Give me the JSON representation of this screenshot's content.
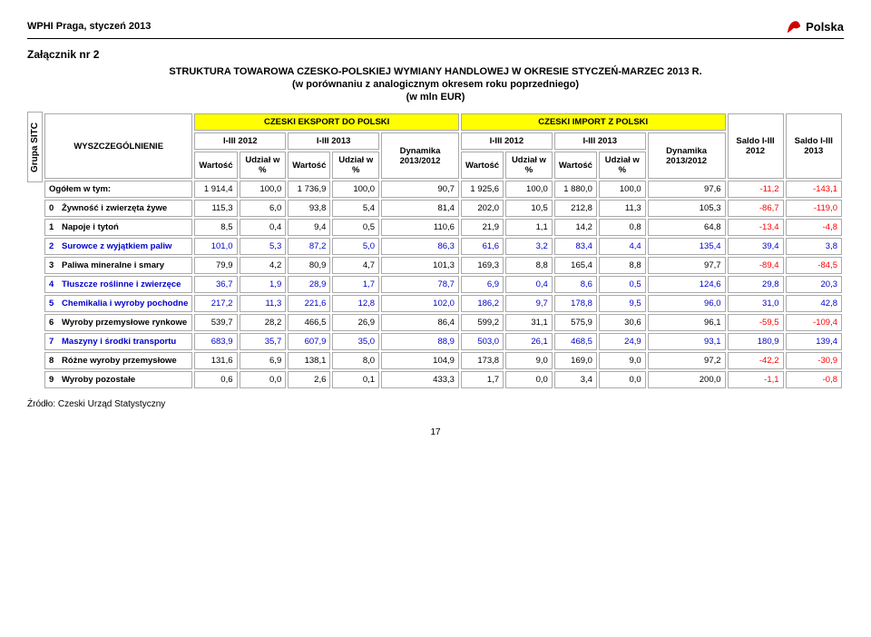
{
  "header": {
    "left": "WPHI Praga, styczeń 2013",
    "logo_text": "Polska"
  },
  "attachment": "Załącznik nr 2",
  "title": "STRUKTURA TOWAROWA CZESKO-POLSKIEJ WYMIANY HANDLOWEJ W OKRESIE STYCZEŃ-MARZEC 2013 R.",
  "subtitle": "(w porównaniu z analogicznym okresem roku poprzedniego)",
  "unit": "(w mln EUR)",
  "side_label": "Grupa SITC",
  "columns": {
    "wyszczegolnienie": "WYSZCZEGÓLNIENIE",
    "eksport": "CZESKI EKSPORT DO POLSKI",
    "import": "CZESKI IMPORT Z POLSKI",
    "period_2012": "I-III 2012",
    "period_2013": "I-III 2013",
    "wartosc": "Wartość",
    "udzial": "Udział w %",
    "dynamika": "Dynamika 2013/2012",
    "saldo_2012": "Saldo I-III 2012",
    "saldo_2013": "Saldo I-III 2013"
  },
  "rows": [
    {
      "idx": "",
      "label": "Ogółem w tym:",
      "ev12": "1 914,4",
      "eu12": "100,0",
      "ev13": "1 736,9",
      "eu13": "100,0",
      "ed": "90,7",
      "iv12": "1 925,6",
      "iu12": "100,0",
      "iv13": "1 880,0",
      "iu13": "100,0",
      "id": "97,6",
      "s12": "-11,2",
      "s13": "-143,1"
    },
    {
      "idx": "0",
      "label": "Żywność i zwierzęta żywe",
      "ev12": "115,3",
      "eu12": "6,0",
      "ev13": "93,8",
      "eu13": "5,4",
      "ed": "81,4",
      "iv12": "202,0",
      "iu12": "10,5",
      "iv13": "212,8",
      "iu13": "11,3",
      "id": "105,3",
      "s12": "-86,7",
      "s13": "-119,0"
    },
    {
      "idx": "1",
      "label": "Napoje i tytoń",
      "ev12": "8,5",
      "eu12": "0,4",
      "ev13": "9,4",
      "eu13": "0,5",
      "ed": "110,6",
      "iv12": "21,9",
      "iu12": "1,1",
      "iv13": "14,2",
      "iu13": "0,8",
      "id": "64,8",
      "s12": "-13,4",
      "s13": "-4,8"
    },
    {
      "idx": "2",
      "label": "Surowce z wyjątkiem paliw",
      "blue": true,
      "ev12": "101,0",
      "eu12": "5,3",
      "ev13": "87,2",
      "eu13": "5,0",
      "ed": "86,3",
      "iv12": "61,6",
      "iu12": "3,2",
      "iv13": "83,4",
      "iu13": "4,4",
      "id": "135,4",
      "s12": "39,4",
      "s13": "3,8"
    },
    {
      "idx": "3",
      "label": "Paliwa mineralne i smary",
      "ev12": "79,9",
      "eu12": "4,2",
      "ev13": "80,9",
      "eu13": "4,7",
      "ed": "101,3",
      "iv12": "169,3",
      "iu12": "8,8",
      "iv13": "165,4",
      "iu13": "8,8",
      "id": "97,7",
      "s12": "-89,4",
      "s13": "-84,5"
    },
    {
      "idx": "4",
      "label": "Tłuszcze roślinne i zwierzęce",
      "blue": true,
      "ev12": "36,7",
      "eu12": "1,9",
      "ev13": "28,9",
      "eu13": "1,7",
      "ed": "78,7",
      "iv12": "6,9",
      "iu12": "0,4",
      "iv13": "8,6",
      "iu13": "0,5",
      "id": "124,6",
      "s12": "29,8",
      "s13": "20,3"
    },
    {
      "idx": "5",
      "label": "Chemikalia i wyroby pochodne",
      "blue": true,
      "ev12": "217,2",
      "eu12": "11,3",
      "ev13": "221,6",
      "eu13": "12,8",
      "ed": "102,0",
      "iv12": "186,2",
      "iu12": "9,7",
      "iv13": "178,8",
      "iu13": "9,5",
      "id": "96,0",
      "s12": "31,0",
      "s13": "42,8"
    },
    {
      "idx": "6",
      "label": "Wyroby przemysłowe rynkowe",
      "ev12": "539,7",
      "eu12": "28,2",
      "ev13": "466,5",
      "eu13": "26,9",
      "ed": "86,4",
      "iv12": "599,2",
      "iu12": "31,1",
      "iv13": "575,9",
      "iu13": "30,6",
      "id": "96,1",
      "s12": "-59,5",
      "s13": "-109,4"
    },
    {
      "idx": "7",
      "label": "Maszyny i środki transportu",
      "blue": true,
      "ev12": "683,9",
      "eu12": "35,7",
      "ev13": "607,9",
      "eu13": "35,0",
      "ed": "88,9",
      "iv12": "503,0",
      "iu12": "26,1",
      "iv13": "468,5",
      "iu13": "24,9",
      "id": "93,1",
      "s12": "180,9",
      "s13": "139,4"
    },
    {
      "idx": "8",
      "label": "Różne wyroby przemysłowe",
      "ev12": "131,6",
      "eu12": "6,9",
      "ev13": "138,1",
      "eu13": "8,0",
      "ed": "104,9",
      "iv12": "173,8",
      "iu12": "9,0",
      "iv13": "169,0",
      "iu13": "9,0",
      "id": "97,2",
      "s12": "-42,2",
      "s13": "-30,9"
    },
    {
      "idx": "9",
      "label": "Wyroby pozostałe",
      "ev12": "0,6",
      "eu12": "0,0",
      "ev13": "2,6",
      "eu13": "0,1",
      "ed": "433,3",
      "iv12": "1,7",
      "iu12": "0,0",
      "iv13": "3,4",
      "iu13": "0,0",
      "id": "200,0",
      "s12": "-1,1",
      "s13": "-0,8"
    }
  ],
  "source": "Źródło: Czeski Urząd Statystyczny",
  "page_number": "17",
  "style": {
    "highlight_bg": "#ffff00",
    "neg_color": "#ff0000",
    "blue_color": "#0000cc",
    "font_main": "Arial"
  }
}
